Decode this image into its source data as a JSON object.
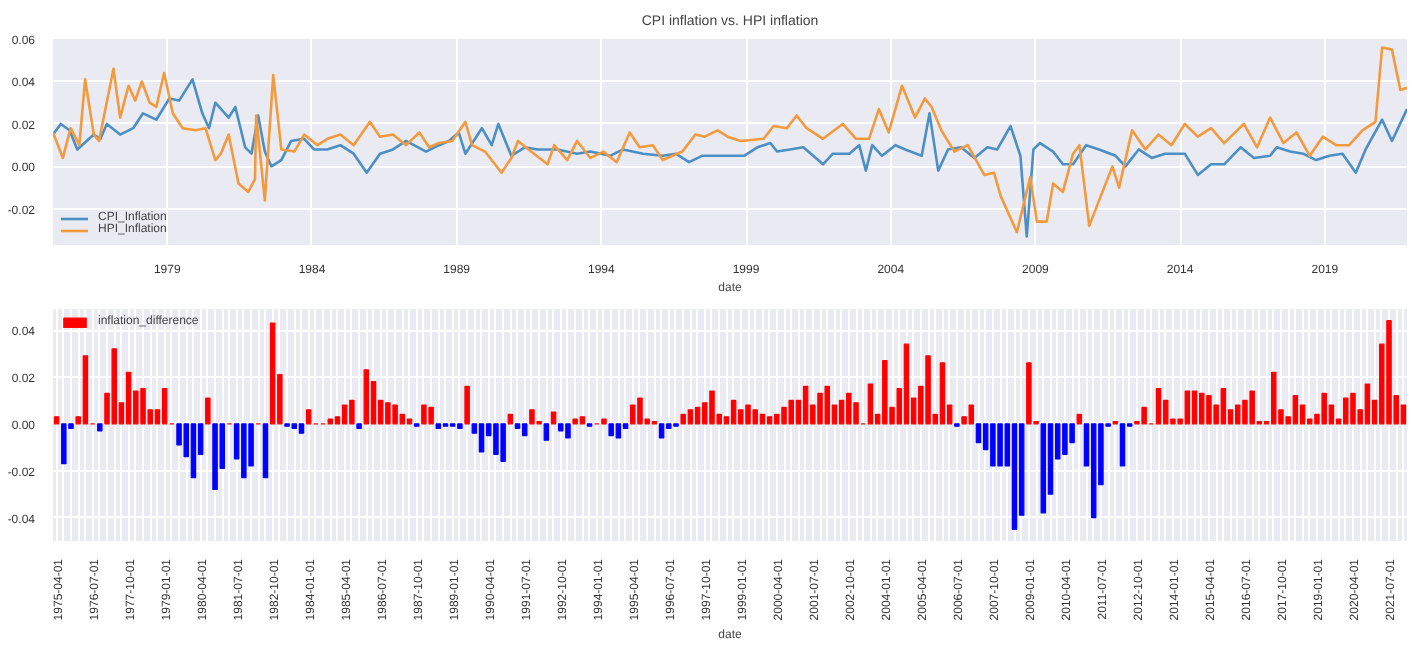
{
  "chart_data": [
    {
      "type": "line",
      "title": "CPI inflation vs. HPI inflation",
      "xlabel": "date",
      "xlim": [
        1975.05,
        2021.84
      ],
      "ylim": [
        -0.037,
        0.06
      ],
      "xticks": [
        1979,
        1984,
        1989,
        1994,
        1999,
        2004,
        2009,
        2014,
        2019
      ],
      "yticks": [
        {
          "value": -0.02,
          "label": "-0.02"
        },
        {
          "value": 0,
          "label": "0.00"
        },
        {
          "value": 0.02,
          "label": "0.02"
        },
        {
          "value": 0.04,
          "label": "0.04"
        },
        {
          "value": 0.06,
          "label": "0.06"
        }
      ],
      "grid": true,
      "legend": "bottom left",
      "line_style": "solid",
      "series": [
        {
          "name": "CPI_Inflation",
          "color": "#4c8fc4",
          "x": [
            1975.05,
            1975.32,
            1975.62,
            1975.89,
            1976.46,
            1976.69,
            1976.91,
            1977.37,
            1977.82,
            1978.16,
            1978.62,
            1979.07,
            1979.41,
            1979.87,
            1980.21,
            1980.44,
            1980.66,
            1981.12,
            1981.35,
            1981.69,
            1981.91,
            1982.14,
            1982.37,
            1982.6,
            1982.94,
            1983.28,
            1983.73,
            1984.07,
            1984.53,
            1984.98,
            1985.44,
            1985.89,
            1986.35,
            1986.8,
            1987.25,
            1987.94,
            1988.39,
            1988.73,
            1989.07,
            1989.3,
            1989.87,
            1990.21,
            1990.44,
            1990.89,
            1991.35,
            1991.8,
            1992.48,
            1993.16,
            1993.62,
            1994.3,
            1994.75,
            1995.44,
            1996.12,
            1996.57,
            1997.03,
            1997.48,
            1998.25,
            1998.93,
            1999.39,
            1999.84,
            2000.07,
            2000.52,
            2000.98,
            2001.66,
            2002.0,
            2002.57,
            2002.91,
            2003.14,
            2003.36,
            2003.7,
            2004.16,
            2004.5,
            2005.07,
            2005.34,
            2005.64,
            2005.98,
            2006.43,
            2006.89,
            2007.34,
            2007.68,
            2008.14,
            2008.48,
            2008.7,
            2008.93,
            2009.16,
            2009.61,
            2009.95,
            2010.3,
            2010.75,
            2011.2,
            2011.77,
            2012.11,
            2012.57,
            2013.02,
            2013.48,
            2014.16,
            2014.61,
            2015.07,
            2015.52,
            2016.09,
            2016.55,
            2017.11,
            2017.34,
            2017.8,
            2018.25,
            2018.7,
            2019.16,
            2019.61,
            2020.07,
            2020.41,
            2020.98,
            2021.32,
            2021.84
          ],
          "values": [
            0.015,
            0.02,
            0.017,
            0.008,
            0.015,
            0.013,
            0.02,
            0.015,
            0.018,
            0.025,
            0.022,
            0.032,
            0.031,
            0.041,
            0.025,
            0.018,
            0.03,
            0.023,
            0.028,
            0.009,
            0.006,
            0.024,
            0.007,
            0.0,
            0.003,
            0.012,
            0.013,
            0.008,
            0.008,
            0.01,
            0.006,
            -0.003,
            0.006,
            0.008,
            0.012,
            0.007,
            0.01,
            0.012,
            0.016,
            0.006,
            0.018,
            0.01,
            0.02,
            0.005,
            0.009,
            0.008,
            0.008,
            0.006,
            0.007,
            0.005,
            0.008,
            0.006,
            0.005,
            0.006,
            0.002,
            0.005,
            0.005,
            0.005,
            0.009,
            0.011,
            0.007,
            0.008,
            0.009,
            0.001,
            0.006,
            0.006,
            0.01,
            -0.002,
            0.01,
            0.005,
            0.01,
            0.008,
            0.005,
            0.025,
            -0.002,
            0.008,
            0.009,
            0.004,
            0.009,
            0.008,
            0.019,
            0.005,
            -0.033,
            0.008,
            0.011,
            0.007,
            0.001,
            0.001,
            0.01,
            0.008,
            0.005,
            0.0,
            0.008,
            0.004,
            0.006,
            0.006,
            -0.004,
            0.001,
            0.001,
            0.009,
            0.004,
            0.005,
            0.009,
            0.007,
            0.006,
            0.003,
            0.005,
            0.006,
            -0.003,
            0.008,
            0.022,
            0.012,
            0.027
          ]
        },
        {
          "name": "HPI_Inflation",
          "color": "#f39a3f",
          "x": [
            1975.05,
            1975.39,
            1975.66,
            1975.96,
            1976.16,
            1976.46,
            1976.64,
            1977.14,
            1977.37,
            1977.66,
            1977.89,
            1978.12,
            1978.39,
            1978.62,
            1978.89,
            1979.19,
            1979.53,
            1979.98,
            1980.32,
            1980.66,
            1980.85,
            1981.12,
            1981.46,
            1981.8,
            1982.03,
            1982.07,
            1982.37,
            1982.66,
            1982.94,
            1983.39,
            1983.73,
            1984.19,
            1984.53,
            1984.98,
            1985.44,
            1986.0,
            1986.35,
            1986.8,
            1987.25,
            1987.71,
            1988.05,
            1988.39,
            1988.85,
            1989.3,
            1989.53,
            1989.98,
            1990.55,
            1990.89,
            1991.12,
            1991.57,
            1992.14,
            1992.37,
            1992.82,
            1993.16,
            1993.62,
            1994.07,
            1994.53,
            1994.98,
            1995.32,
            1995.78,
            1996.12,
            1996.8,
            1997.25,
            1997.57,
            1998.02,
            1998.36,
            1998.82,
            1999.61,
            1999.95,
            2000.41,
            2000.75,
            2001.09,
            2001.66,
            2002.34,
            2002.8,
            2003.25,
            2003.59,
            2003.93,
            2004.39,
            2004.84,
            2005.18,
            2005.41,
            2005.75,
            2006.2,
            2006.66,
            2007.23,
            2007.57,
            2007.8,
            2008.36,
            2008.82,
            2009.05,
            2009.39,
            2009.61,
            2009.95,
            2010.3,
            2010.52,
            2010.86,
            2011.2,
            2011.66,
            2011.89,
            2012.34,
            2012.8,
            2013.25,
            2013.7,
            2014.16,
            2014.61,
            2015.07,
            2015.52,
            2016.2,
            2016.66,
            2017.11,
            2017.57,
            2018.02,
            2018.48,
            2018.93,
            2019.39,
            2019.84,
            2020.3,
            2020.75,
            2020.98,
            2021.32,
            2021.61,
            2021.84
          ],
          "values": [
            0.016,
            0.004,
            0.018,
            0.01,
            0.041,
            0.015,
            0.012,
            0.046,
            0.023,
            0.038,
            0.031,
            0.04,
            0.03,
            0.028,
            0.044,
            0.025,
            0.018,
            0.017,
            0.018,
            0.003,
            0.006,
            0.015,
            -0.008,
            -0.012,
            -0.006,
            0.024,
            -0.016,
            0.043,
            0.008,
            0.007,
            0.015,
            0.01,
            0.013,
            0.015,
            0.01,
            0.021,
            0.014,
            0.015,
            0.01,
            0.016,
            0.009,
            0.011,
            0.012,
            0.021,
            0.01,
            0.007,
            -0.003,
            0.004,
            0.012,
            0.007,
            0.001,
            0.01,
            0.003,
            0.012,
            0.004,
            0.007,
            0.002,
            0.016,
            0.009,
            0.01,
            0.003,
            0.007,
            0.015,
            0.014,
            0.017,
            0.014,
            0.012,
            0.013,
            0.019,
            0.018,
            0.024,
            0.018,
            0.013,
            0.02,
            0.013,
            0.013,
            0.027,
            0.016,
            0.038,
            0.023,
            0.032,
            0.028,
            0.017,
            0.007,
            0.01,
            -0.004,
            -0.003,
            -0.014,
            -0.031,
            -0.005,
            -0.026,
            -0.026,
            -0.008,
            -0.012,
            0.006,
            0.01,
            -0.028,
            -0.016,
            0.0,
            -0.01,
            0.017,
            0.008,
            0.015,
            0.01,
            0.02,
            0.014,
            0.018,
            0.011,
            0.02,
            0.009,
            0.023,
            0.011,
            0.016,
            0.005,
            0.014,
            0.01,
            0.01,
            0.017,
            0.021,
            0.056,
            0.055,
            0.036,
            0.037
          ]
        }
      ]
    },
    {
      "type": "bar",
      "xlabel": "date",
      "ylim": [
        -0.05,
        0.049
      ],
      "yticks": [
        {
          "value": -0.04,
          "label": "-0.04"
        },
        {
          "value": -0.02,
          "label": "-0.02"
        },
        {
          "value": 0,
          "label": "0.00"
        },
        {
          "value": 0.02,
          "label": "0.02"
        },
        {
          "value": 0.04,
          "label": "0.04"
        }
      ],
      "grid": true,
      "legend": "top left",
      "categories": [
        "1975-04-01",
        null,
        null,
        null,
        null,
        "1976-07-01",
        null,
        null,
        null,
        null,
        "1977-10-01",
        null,
        null,
        null,
        null,
        "1979-01-01",
        null,
        null,
        null,
        null,
        "1980-04-01",
        null,
        null,
        null,
        null,
        "1981-07-01",
        null,
        null,
        null,
        null,
        "1982-10-01",
        null,
        null,
        null,
        null,
        "1984-01-01",
        null,
        null,
        null,
        null,
        "1985-04-01",
        null,
        null,
        null,
        null,
        "1986-07-01",
        null,
        null,
        null,
        null,
        "1987-10-01",
        null,
        null,
        null,
        null,
        "1989-01-01",
        null,
        null,
        null,
        null,
        "1990-04-01",
        null,
        null,
        null,
        null,
        "1991-07-01",
        null,
        null,
        null,
        null,
        "1992-10-01",
        null,
        null,
        null,
        null,
        "1994-01-01",
        null,
        null,
        null,
        null,
        "1995-04-01",
        null,
        null,
        null,
        null,
        "1996-07-01",
        null,
        null,
        null,
        null,
        "1997-10-01",
        null,
        null,
        null,
        null,
        "1999-01-01",
        null,
        null,
        null,
        null,
        "2000-04-01",
        null,
        null,
        null,
        null,
        "2001-07-01",
        null,
        null,
        null,
        null,
        "2002-10-01",
        null,
        null,
        null,
        null,
        "2004-01-01",
        null,
        null,
        null,
        null,
        "2005-04-01",
        null,
        null,
        null,
        null,
        "2006-07-01",
        null,
        null,
        null,
        null,
        "2007-10-01",
        null,
        null,
        null,
        null,
        "2009-01-01",
        null,
        null,
        null,
        null,
        "2010-04-01",
        null,
        null,
        null,
        null,
        "2011-07-01",
        null,
        null,
        null,
        null,
        "2012-10-01",
        null,
        null,
        null,
        null,
        "2014-01-01",
        null,
        null,
        null,
        null,
        "2015-04-01",
        null,
        null,
        null,
        null,
        "2016-07-01",
        null,
        null,
        null,
        null,
        "2017-10-01",
        null,
        null,
        null,
        null,
        "2019-01-01",
        null,
        null,
        null,
        null,
        "2020-04-01",
        null,
        null,
        null,
        null,
        "2021-07-01",
        null,
        null
      ],
      "series": [
        {
          "name": "inflation_difference",
          "color": "#ff0000",
          "values": [
            0.003,
            -0.017,
            -0.002,
            0.003,
            0.029,
            0,
            -0.003,
            0.013,
            0.032,
            0.009,
            0.022,
            0.014,
            0.015,
            0.006,
            0.006,
            0.015,
            0,
            -0.009,
            -0.014,
            -0.023,
            -0.013,
            0.011,
            -0.028,
            -0.019,
            0,
            -0.015,
            -0.023,
            -0.018,
            0,
            -0.023,
            0.043,
            0.021,
            -0.001,
            -0.002,
            -0.004,
            0.006,
            0,
            0,
            0.002,
            0.003,
            0.008,
            0.01,
            -0.002,
            0.023,
            0.018,
            0.01,
            0.009,
            0.008,
            0.004,
            0.002,
            -0.001,
            0.008,
            0.007,
            -0.002,
            -0.001,
            -0.001,
            -0.002,
            0.016,
            -0.004,
            -0.012,
            -0.005,
            -0.013,
            -0.016,
            0.004,
            -0.002,
            -0.005,
            0.006,
            0.001,
            -0.007,
            0.005,
            -0.003,
            -0.006,
            0.002,
            0.003,
            -0.001,
            0,
            0.002,
            -0.005,
            -0.006,
            -0.002,
            0.008,
            0.011,
            0.002,
            0.001,
            -0.006,
            -0.002,
            -0.001,
            0.004,
            0.006,
            0.007,
            0.009,
            0.014,
            0.004,
            0.003,
            0.01,
            0.006,
            0.008,
            0.006,
            0.004,
            0.003,
            0.004,
            0.007,
            0.01,
            0.01,
            0.016,
            0.008,
            0.013,
            0.016,
            0.008,
            0.01,
            0.013,
            0.009,
            0,
            0.017,
            0.004,
            0.027,
            0.007,
            0.015,
            0.034,
            0.011,
            0.016,
            0.029,
            0.004,
            0.026,
            0.008,
            -0.001,
            0.003,
            0.008,
            -0.008,
            -0.011,
            -0.018,
            -0.018,
            -0.018,
            -0.045,
            -0.039,
            0.026,
            0.001,
            -0.038,
            -0.03,
            -0.015,
            -0.013,
            -0.008,
            0.004,
            -0.018,
            -0.04,
            -0.026,
            -0.001,
            0.001,
            -0.018,
            -0.001,
            0.001,
            0.007,
            0,
            0.015,
            0.01,
            0.002,
            0.002,
            0.014,
            0.014,
            0.013,
            0.012,
            0.008,
            0.015,
            0.006,
            0.008,
            0.01,
            0.014,
            0.001,
            0.001,
            0.022,
            0.006,
            0.003,
            0.012,
            0.008,
            0.002,
            0.004,
            0.013,
            0.008,
            0.002,
            0.011,
            0.013,
            0.006,
            0.017,
            0.01,
            0.034,
            0.044,
            0.012,
            0.008
          ],
          "colors": [
            "#ff0000",
            "#0000ff",
            "#0000ff",
            "#ff0000",
            "#ff0000",
            "#ff0000",
            "#0000ff",
            "#ff0000",
            "#ff0000",
            "#ff0000",
            "#ff0000",
            "#ff0000",
            "#ff0000",
            "#ff0000",
            "#ff0000",
            "#ff0000",
            "#ff0000",
            "#0000ff",
            "#0000ff",
            "#0000ff",
            "#0000ff",
            "#ff0000",
            "#0000ff",
            "#0000ff",
            "#ff0000",
            "#0000ff",
            "#0000ff",
            "#0000ff",
            "#ff0000",
            "#0000ff",
            "#ff0000",
            "#ff0000",
            "#0000ff",
            "#0000ff",
            "#0000ff",
            "#ff0000",
            "#ff0000",
            "#ff0000",
            "#ff0000",
            "#ff0000",
            "#ff0000",
            "#ff0000",
            "#0000ff",
            "#ff0000",
            "#ff0000",
            "#ff0000",
            "#ff0000",
            "#ff0000",
            "#ff0000",
            "#ff0000",
            "#0000ff",
            "#ff0000",
            "#ff0000",
            "#0000ff",
            "#0000ff",
            "#0000ff",
            "#0000ff",
            "#ff0000",
            "#0000ff",
            "#0000ff",
            "#0000ff",
            "#0000ff",
            "#0000ff",
            "#ff0000",
            "#0000ff",
            "#0000ff",
            "#ff0000",
            "#ff0000",
            "#0000ff",
            "#ff0000",
            "#0000ff",
            "#0000ff",
            "#ff0000",
            "#ff0000",
            "#0000ff",
            "#ff0000",
            "#ff0000",
            "#0000ff",
            "#0000ff",
            "#0000ff",
            "#ff0000",
            "#ff0000",
            "#ff0000",
            "#ff0000",
            "#0000ff",
            "#0000ff",
            "#0000ff",
            "#ff0000",
            "#ff0000",
            "#ff0000",
            "#ff0000",
            "#ff0000",
            "#ff0000",
            "#ff0000",
            "#ff0000",
            "#ff0000",
            "#ff0000",
            "#ff0000",
            "#ff0000",
            "#ff0000",
            "#ff0000",
            "#ff0000",
            "#ff0000",
            "#ff0000",
            "#ff0000",
            "#ff0000",
            "#ff0000",
            "#ff0000",
            "#ff0000",
            "#ff0000",
            "#ff0000",
            "#ff0000",
            "#ff0000",
            "#ff0000",
            "#ff0000",
            "#ff0000",
            "#ff0000",
            "#ff0000",
            "#ff0000",
            "#ff0000",
            "#ff0000",
            "#ff0000",
            "#ff0000",
            "#ff0000",
            "#ff0000",
            "#0000ff",
            "#ff0000",
            "#ff0000",
            "#0000ff",
            "#0000ff",
            "#0000ff",
            "#0000ff",
            "#0000ff",
            "#0000ff",
            "#0000ff",
            "#ff0000",
            "#ff0000",
            "#0000ff",
            "#0000ff",
            "#0000ff",
            "#0000ff",
            "#0000ff",
            "#ff0000",
            "#0000ff",
            "#0000ff",
            "#0000ff",
            "#0000ff",
            "#ff0000",
            "#0000ff",
            "#0000ff",
            "#ff0000",
            "#ff0000",
            "#ff0000",
            "#ff0000",
            "#ff0000",
            "#ff0000",
            "#ff0000",
            "#ff0000",
            "#ff0000",
            "#ff0000",
            "#ff0000",
            "#ff0000",
            "#ff0000",
            "#ff0000",
            "#ff0000",
            "#ff0000",
            "#ff0000",
            "#ff0000",
            "#ff0000",
            "#ff0000",
            "#ff0000",
            "#ff0000",
            "#ff0000",
            "#ff0000",
            "#ff0000",
            "#ff0000",
            "#ff0000",
            "#ff0000",
            "#ff0000",
            "#ff0000",
            "#ff0000",
            "#ff0000",
            "#ff0000",
            "#ff0000",
            "#ff0000",
            "#ff0000",
            "#ff0000",
            "#ff0000"
          ]
        }
      ]
    }
  ]
}
